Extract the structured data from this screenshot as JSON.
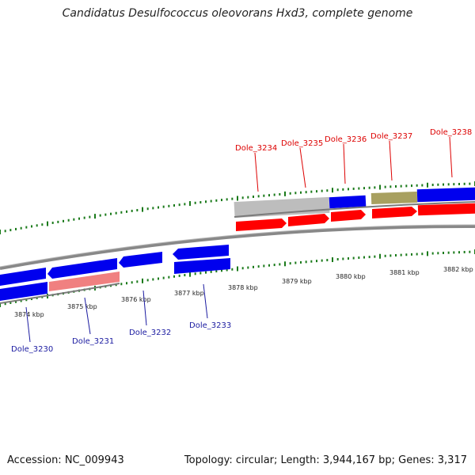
{
  "title": "Candidatus Desulfococcus oleovorans Hxd3, complete genome",
  "footer": {
    "accession": "Accession: NC_009943",
    "stats": "Topology: circular; Length: 3,944,167 bp; Genes: 3,317"
  },
  "colors": {
    "axis": "#888888",
    "tick": "#1a7a1a",
    "blue_gene": "#0000ee",
    "red_gene": "#ff0000",
    "pink_gene": "#f08080",
    "grey_gene": "#bdbdbd",
    "olive_gene": "#a8a060",
    "upper_label": "#dd0000",
    "lower_label": "#1a1aa0"
  },
  "kbp_labels": [
    "3874 kbp",
    "3875 kbp",
    "3876 kbp",
    "3877 kbp",
    "3878 kbp",
    "3879 kbp",
    "3880 kbp",
    "3881 kbp",
    "3882 kbp"
  ],
  "upper_gene_labels": [
    "Dole_3234",
    "Dole_3235",
    "Dole_3236",
    "Dole_3237",
    "Dole_3238"
  ],
  "lower_gene_labels": [
    "Dole_3230",
    "Dole_3231",
    "Dole_3232",
    "Dole_3233"
  ]
}
